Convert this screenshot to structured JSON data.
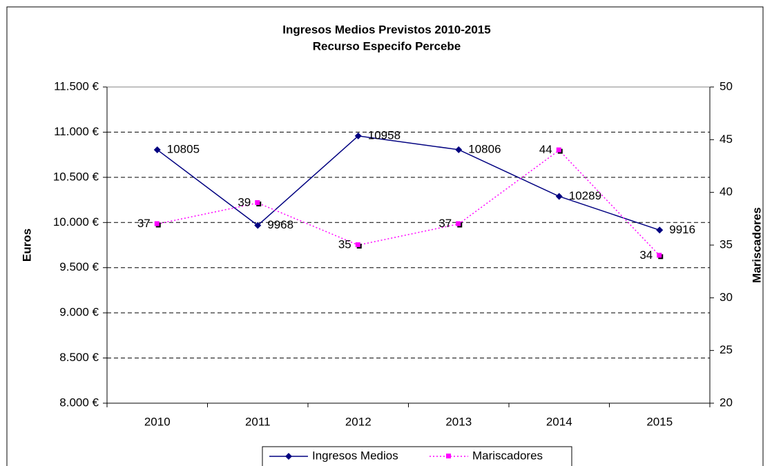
{
  "chart_data": {
    "type": "line",
    "title": "Ingresos Medios Previstos 2010-2015",
    "subtitle": "Recurso Especifo Percebe",
    "ylabel": "Euros",
    "y2label": "Mariscadores",
    "categories": [
      "2010",
      "2011",
      "2012",
      "2013",
      "2014",
      "2015"
    ],
    "series": [
      {
        "name": "Ingresos Medios",
        "color": "#000080",
        "values": [
          10805,
          9968,
          10958,
          10806,
          10289,
          9916
        ]
      },
      {
        "name": "Mariscadores",
        "color": "#ff00ff",
        "axis": "y2",
        "values": [
          37,
          39,
          35,
          37,
          44,
          34
        ]
      }
    ],
    "ylim": [
      8000,
      11500
    ],
    "yticks": [
      {
        "value": 8000,
        "label": "8.000 €"
      },
      {
        "value": 8500,
        "label": "8.500 €"
      },
      {
        "value": 9000,
        "label": "9.000 €"
      },
      {
        "value": 9500,
        "label": "9.500 €"
      },
      {
        "value": 10000,
        "label": "10.000 €"
      },
      {
        "value": 10500,
        "label": "10.500 €"
      },
      {
        "value": 11000,
        "label": "11.000 €"
      },
      {
        "value": 11500,
        "label": "11.500 €"
      }
    ],
    "y2lim": [
      20,
      50
    ],
    "y2ticks": [
      20,
      25,
      30,
      35,
      40,
      45,
      50
    ],
    "grid": true,
    "legend": "bottom"
  }
}
